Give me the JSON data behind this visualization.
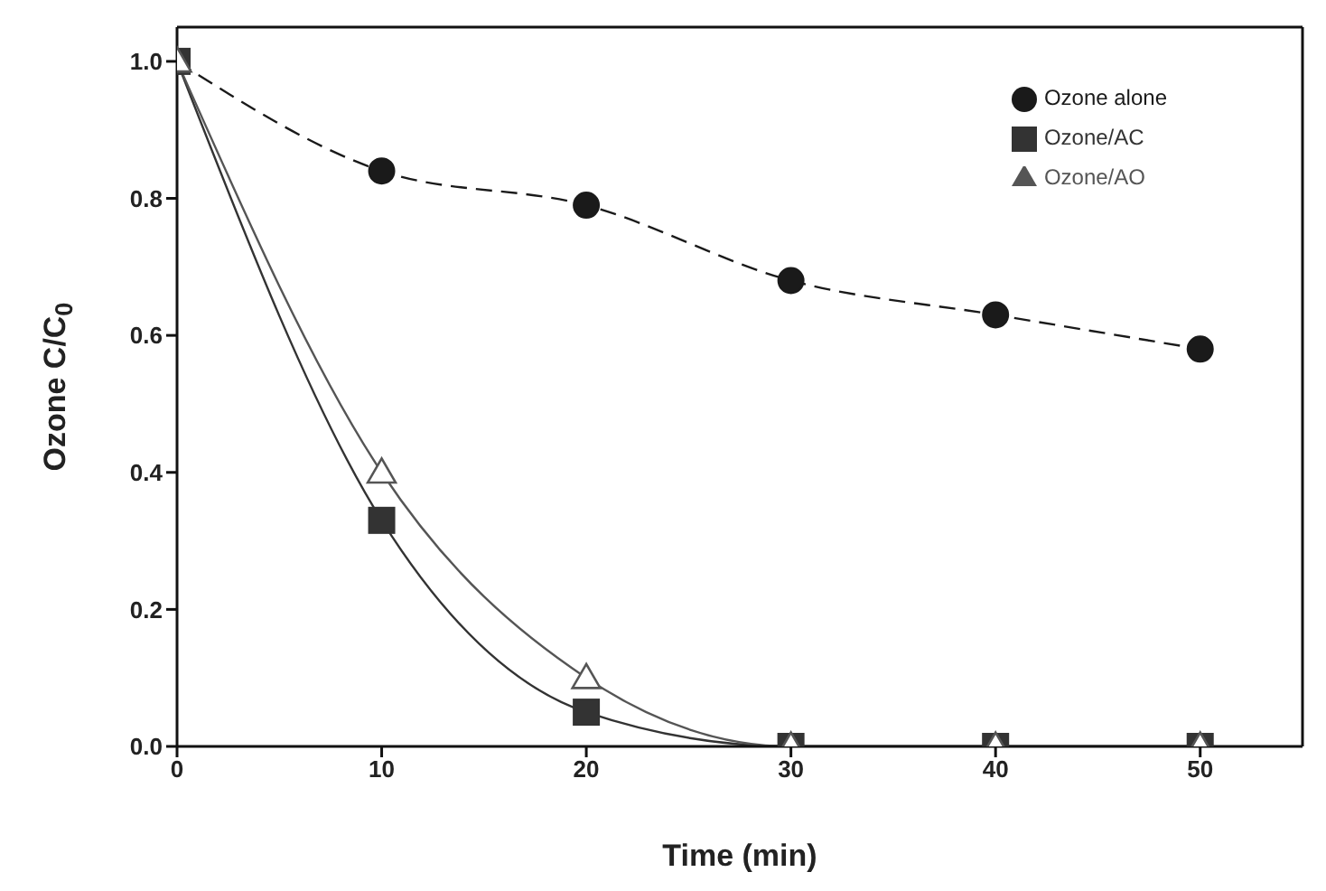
{
  "chart_data": {
    "type": "line",
    "xlabel": "Time (min)",
    "ylabel": "Ozone C/C$_{0}$",
    "x": [
      0,
      10,
      20,
      30,
      40,
      50
    ],
    "series": [
      {
        "name": "Ozone alone",
        "color": "#1a1a1a",
        "values": [
          1,
          0.84,
          0.79,
          0.68,
          0.63,
          0.58
        ],
        "marker": "circle",
        "line_style": "dashed"
      },
      {
        "name": "Ozone/AC",
        "color": "#333333",
        "values": [
          1,
          0.33,
          0.05,
          0,
          0,
          0
        ],
        "marker": "square",
        "line_style": "solid"
      },
      {
        "name": "Ozone/AO",
        "color": "#555555",
        "values": [
          1,
          0.4,
          0.1,
          0,
          0,
          0
        ],
        "marker": "triangle",
        "line_style": "solid"
      }
    ],
    "xlim": [
      0,
      55
    ],
    "xticks": [
      0,
      10,
      20,
      30,
      40,
      50
    ],
    "ylim": [
      0,
      1.05
    ],
    "yticks": [
      {
        "value": 0,
        "label": "0.0"
      },
      0.2,
      0.4,
      0.6,
      0.8,
      {
        "value": 1,
        "label": "1.0"
      }
    ],
    "grid": false,
    "legend": "top right"
  }
}
